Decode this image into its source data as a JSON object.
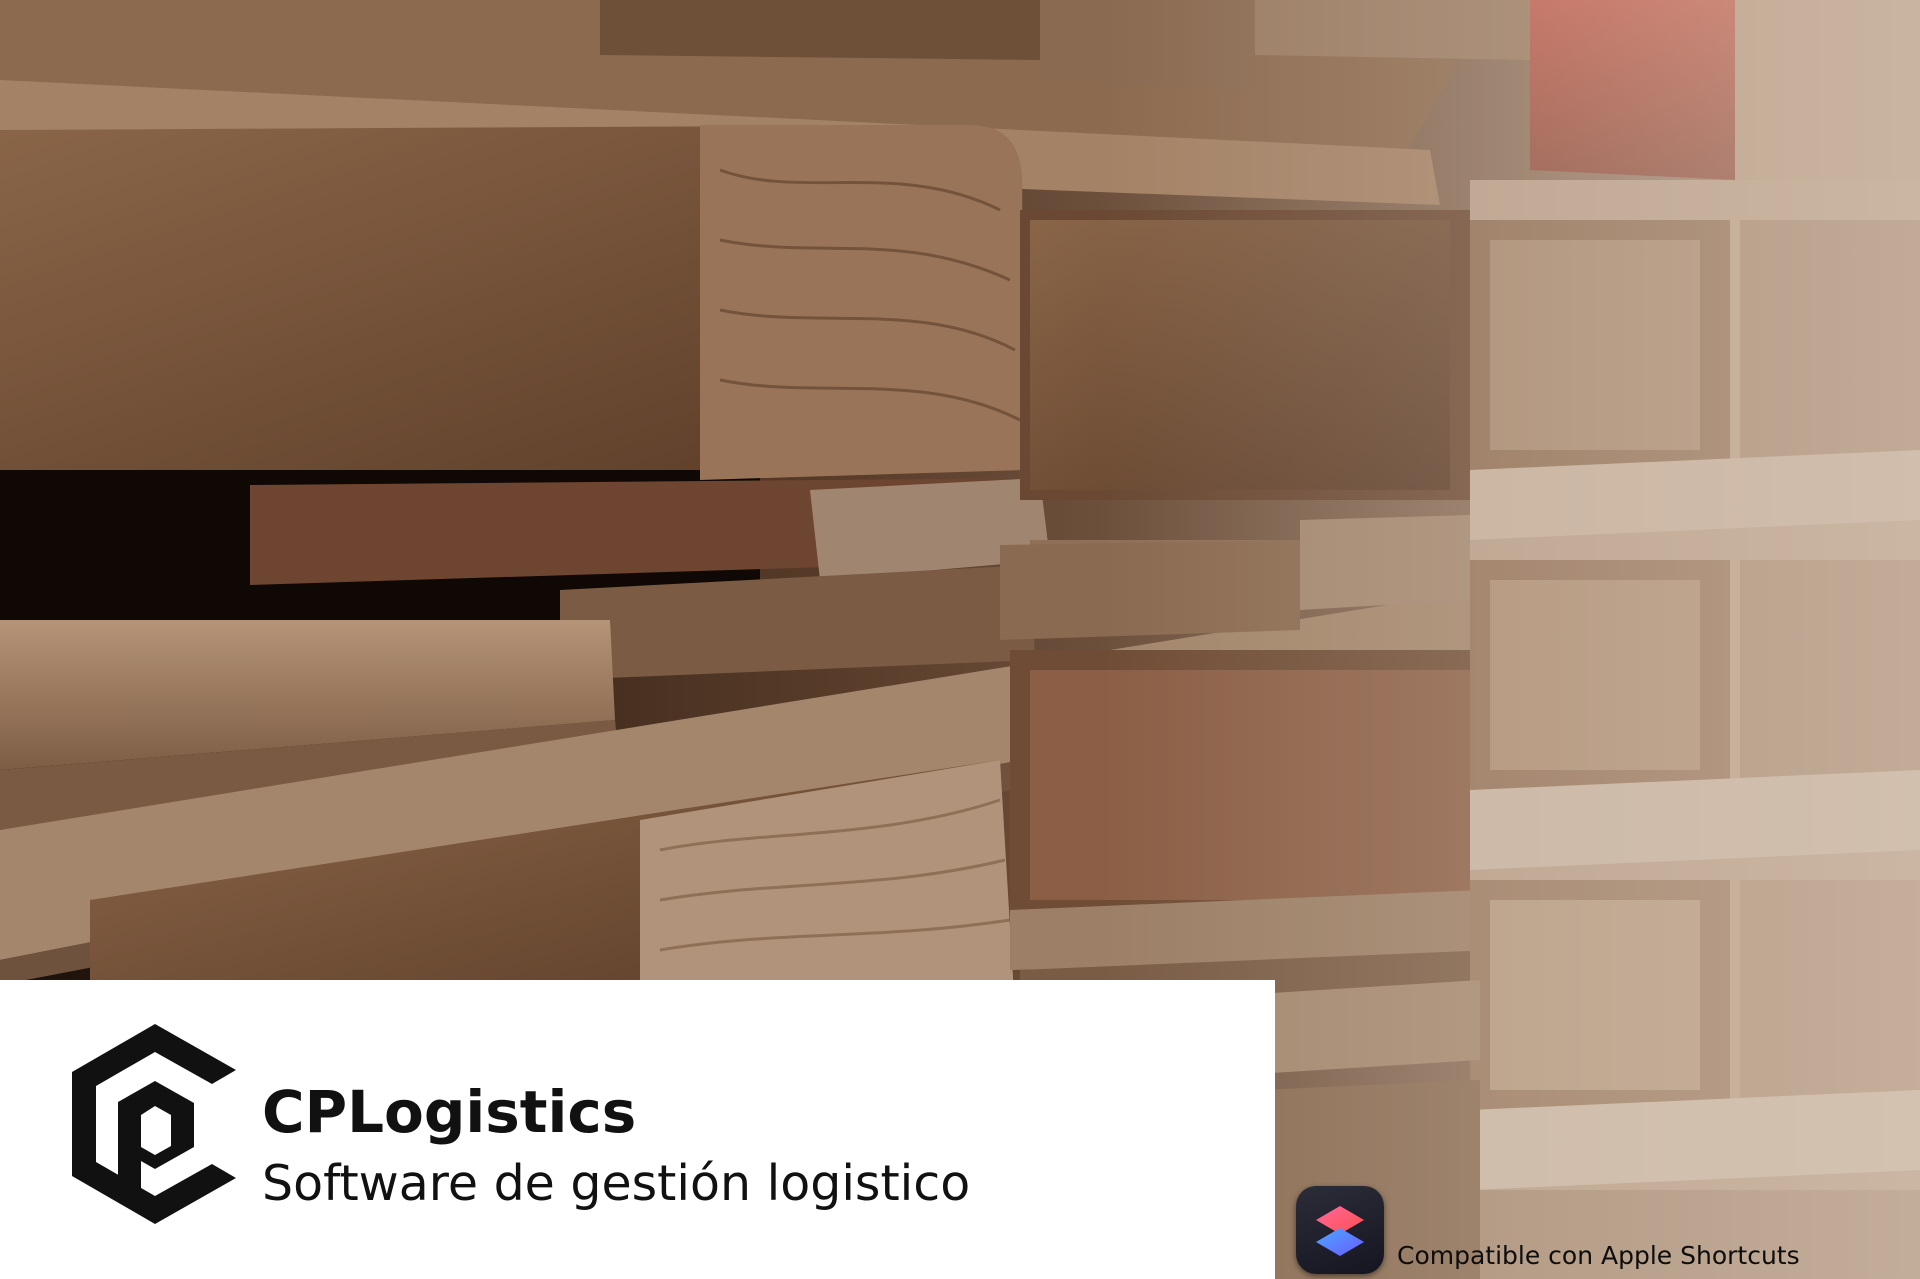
{
  "brand": {
    "name": "CPLogistics",
    "tagline": "Software de gestión logistico",
    "logo_icon": "cp-hexagon-logo-icon"
  },
  "badge": {
    "icon": "apple-shortcuts-icon",
    "caption": "Compatible con Apple Shortcuts"
  },
  "background": {
    "subject": "wooden-pallets-photo",
    "colors": {
      "wood_light": "#a98467",
      "wood_mid": "#7d5a3f",
      "wood_dark": "#3b2518",
      "shadow": "#120a06"
    }
  },
  "colors": {
    "banner": "#ffffff",
    "text": "#111111",
    "logo": "#111111"
  }
}
